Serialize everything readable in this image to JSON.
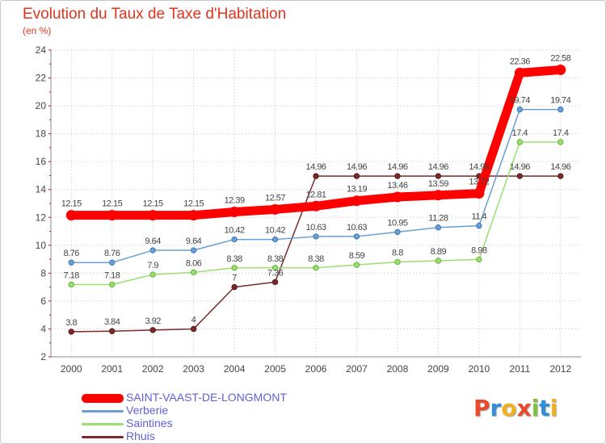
{
  "chart_data": {
    "type": "line",
    "title": "Evolution du Taux de Taxe d'Habitation",
    "subtitle": "(en %)",
    "xlabel": "",
    "ylabel": "",
    "x": [
      "2000",
      "2001",
      "2002",
      "2003",
      "2004",
      "2005",
      "2006",
      "2007",
      "2008",
      "2009",
      "2010",
      "2011",
      "2012"
    ],
    "ylim": [
      2,
      24
    ],
    "yticks": [
      "2",
      "4",
      "6",
      "8",
      "10",
      "12",
      "14",
      "16",
      "18",
      "20",
      "22",
      "24"
    ],
    "grid": true,
    "legend_position": "bottom-left",
    "series": [
      {
        "name": "SAINT-VAAST-DE-LONGMONT",
        "color": "#ff0000",
        "values": [
          12.15,
          12.15,
          12.15,
          12.15,
          12.39,
          12.57,
          12.81,
          13.19,
          13.46,
          13.59,
          13.72,
          22.36,
          22.58
        ],
        "labels": [
          "12.15",
          "12.15",
          "12.15",
          "12.15",
          "12.39",
          "12.57",
          "12.81",
          "13.19",
          "13.46",
          "13.59",
          "13.72",
          "22.36",
          "22.58"
        ]
      },
      {
        "name": "Verberie",
        "color": "#6a9fd4",
        "values": [
          8.76,
          8.76,
          9.64,
          9.64,
          10.42,
          10.42,
          10.63,
          10.63,
          10.95,
          11.28,
          11.4,
          19.74,
          19.74
        ],
        "labels": [
          "8.76",
          "8.76",
          "9.64",
          "9.64",
          "10.42",
          "10.42",
          "10.63",
          "10.63",
          "10.95",
          "11.28",
          "11.4",
          "19.74",
          "19.74"
        ]
      },
      {
        "name": "Saintines",
        "color": "#99e06e",
        "values": [
          7.18,
          7.18,
          7.9,
          8.06,
          8.38,
          8.38,
          8.38,
          8.59,
          8.8,
          8.89,
          8.98,
          17.4,
          17.4
        ],
        "labels": [
          "7.18",
          "7.18",
          "7.9",
          "8.06",
          "8.38",
          "8.38",
          "8.38",
          "8.59",
          "8.8",
          "8.89",
          "8.98",
          "17.4",
          "17.4"
        ]
      },
      {
        "name": "Rhuis",
        "color": "#7a2a2a",
        "values": [
          3.8,
          3.84,
          3.92,
          4,
          7,
          7.36,
          14.96,
          14.96,
          14.96,
          14.96,
          14.96,
          14.96,
          14.96
        ],
        "labels": [
          "3.8",
          "3.84",
          "3.92",
          "4",
          "7",
          "7.36",
          "14.96",
          "14.96",
          "14.96",
          "14.96",
          "14.96",
          "14.96",
          "14.96"
        ]
      }
    ]
  },
  "logo": {
    "text": "Proxiti",
    "letters": [
      "P",
      "r",
      "o",
      "x",
      "i",
      "t",
      "i"
    ],
    "colors": [
      "#e84a2b",
      "#2f8fd8",
      "#f2b01e",
      "#e84a2b",
      "#7cc243",
      "#2f8fd8",
      "#f2b01e"
    ]
  }
}
